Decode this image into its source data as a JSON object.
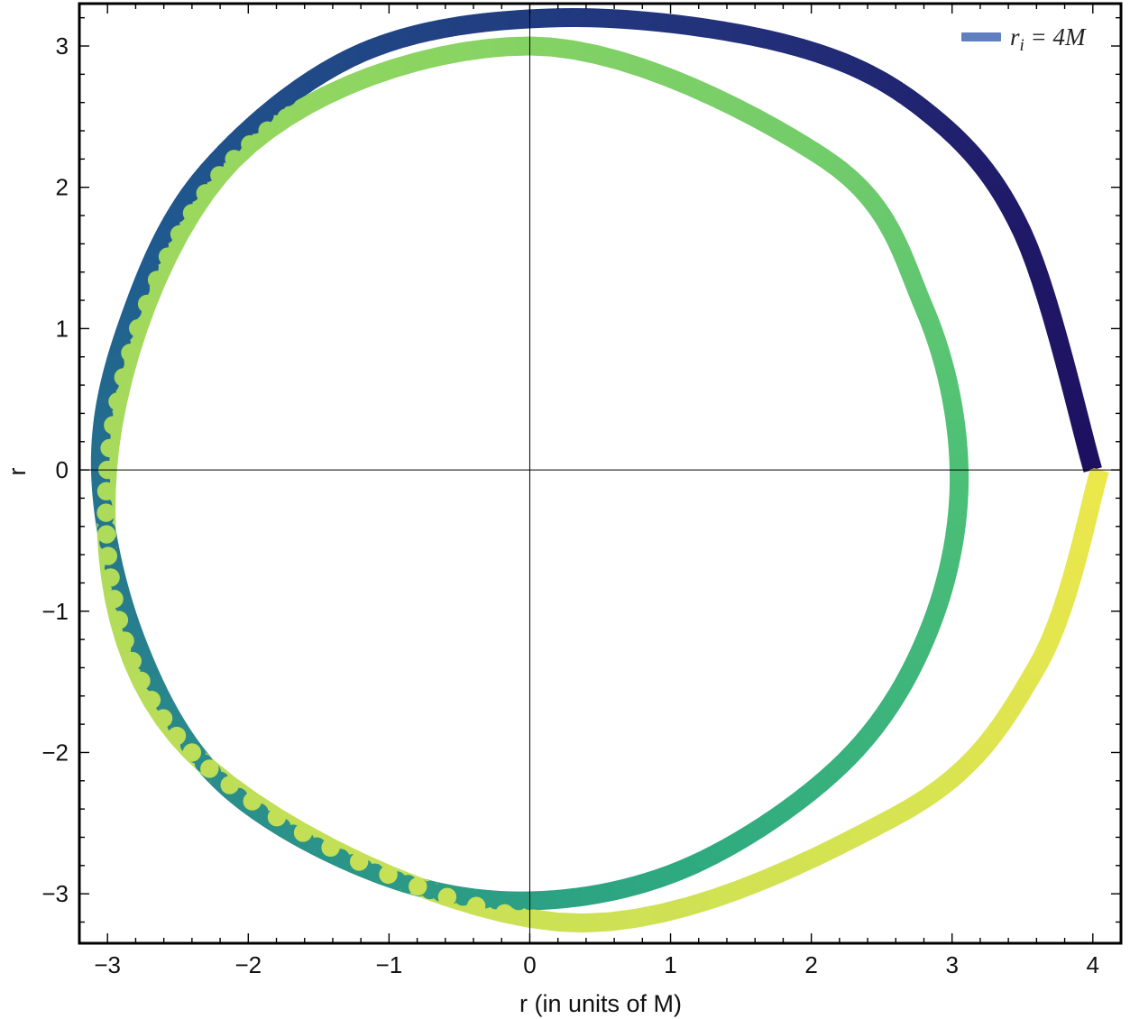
{
  "chart_data": {
    "type": "line",
    "title": "",
    "xlabel": "r (in units of M)",
    "ylabel": "r",
    "xlim": [
      -3.2,
      4.2
    ],
    "ylim": [
      -3.35,
      3.3
    ],
    "x_ticks": [
      {
        "value": -3,
        "label": "−3"
      },
      {
        "value": -2,
        "label": "−2"
      },
      {
        "value": -1,
        "label": "−1"
      },
      {
        "value": 0,
        "label": "0"
      },
      {
        "value": 1,
        "label": "1"
      },
      {
        "value": 2,
        "label": "2"
      },
      {
        "value": 3,
        "label": "3"
      },
      {
        "value": 4,
        "label": "4"
      }
    ],
    "y_ticks": [
      {
        "value": -3,
        "label": "−3"
      },
      {
        "value": -2,
        "label": "−2"
      },
      {
        "value": -1,
        "label": "−1"
      },
      {
        "value": 0,
        "label": "0"
      },
      {
        "value": 1,
        "label": "1"
      },
      {
        "value": 2,
        "label": "2"
      },
      {
        "value": 3,
        "label": "3"
      }
    ],
    "grid": false,
    "axes_through_origin": true,
    "frame": true,
    "legend": {
      "placement": "top-right",
      "main": "r",
      "subscript": "i",
      "rest": " = 4M",
      "swatch_color": "#5f7fbf"
    },
    "series": [
      {
        "name": "r_i = 4M",
        "param": "phi",
        "phi_end": 6.3,
        "color_gradient": [
          "#1e0f60",
          "#22307a",
          "#1f5a8f",
          "#2a8a8c",
          "#2eaa80",
          "#4fc176",
          "#8dd561",
          "#c9e055",
          "#ece84c"
        ],
        "points": [
          {
            "x": 4.0,
            "y": 0.0
          },
          {
            "x": 3.5,
            "y": 1.68
          },
          {
            "x": 2.8,
            "y": 2.55
          },
          {
            "x": 1.8,
            "y": 3.02
          },
          {
            "x": 0.22,
            "y": 3.2
          },
          {
            "x": -1.2,
            "y": 2.95
          },
          {
            "x": -2.3,
            "y": 2.1
          },
          {
            "x": -2.85,
            "y": 1.05
          },
          {
            "x": -3.05,
            "y": 0.0
          },
          {
            "x": -2.8,
            "y": -1.2
          },
          {
            "x": -2.2,
            "y": -2.2
          },
          {
            "x": -1.1,
            "y": -2.85
          },
          {
            "x": 0.0,
            "y": -3.05
          },
          {
            "x": 1.15,
            "y": -2.8
          },
          {
            "x": 2.25,
            "y": -2.05
          },
          {
            "x": 2.85,
            "y": -1.1
          },
          {
            "x": 3.05,
            "y": 0.0
          },
          {
            "x": 2.8,
            "y": 1.15
          },
          {
            "x": 2.1,
            "y": 2.2
          },
          {
            "x": 0.0,
            "y": 3.0
          },
          {
            "x": -2.1,
            "y": 2.2
          },
          {
            "x": -3.0,
            "y": 0.0
          },
          {
            "x": -2.4,
            "y": -2.0
          },
          {
            "x": 0.2,
            "y": -3.2
          },
          {
            "x": 2.6,
            "y": -2.45
          },
          {
            "x": 3.6,
            "y": -1.4
          },
          {
            "x": 4.05,
            "y": 0.0
          }
        ]
      }
    ]
  }
}
